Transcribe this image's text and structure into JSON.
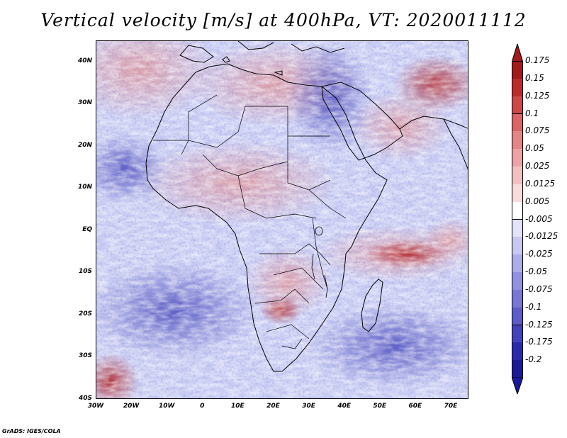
{
  "title": "Vertical velocity [m/s] at 400hPa, VT: 2020011112",
  "footer": "GrADS: IGES/COLA",
  "map": {
    "lat_labels": [
      "40N",
      "30N",
      "20N",
      "10N",
      "EQ",
      "10S",
      "20S",
      "30S",
      "40S"
    ],
    "lon_labels": [
      "30W",
      "20W",
      "10W",
      "0",
      "10E",
      "20E",
      "30E",
      "40E",
      "50E",
      "60E",
      "70E"
    ],
    "lon_range": [
      -30,
      75
    ],
    "lat_range": [
      -40,
      45
    ]
  },
  "colorbar": {
    "labels": [
      "0.175",
      "0.15",
      "0.125",
      "0.1",
      "0.075",
      "0.05",
      "0.025",
      "0.0125",
      "0.005",
      "-0.005",
      "-0.0125",
      "-0.025",
      "-0.05",
      "-0.075",
      "-0.1",
      "-0.125",
      "-0.175",
      "-0.2"
    ],
    "colors": [
      "#a31a1a",
      "#bd2a2a",
      "#cf4747",
      "#dc6464",
      "#e58585",
      "#eda3a3",
      "#f3c0c0",
      "#f8dcdc",
      "#ffffff",
      "#e3e3fa",
      "#c8c8f2",
      "#adadeb",
      "#9292e2",
      "#7777d6",
      "#5c5cca",
      "#4242bd",
      "#2a2aae",
      "#1a1a9a"
    ]
  }
}
